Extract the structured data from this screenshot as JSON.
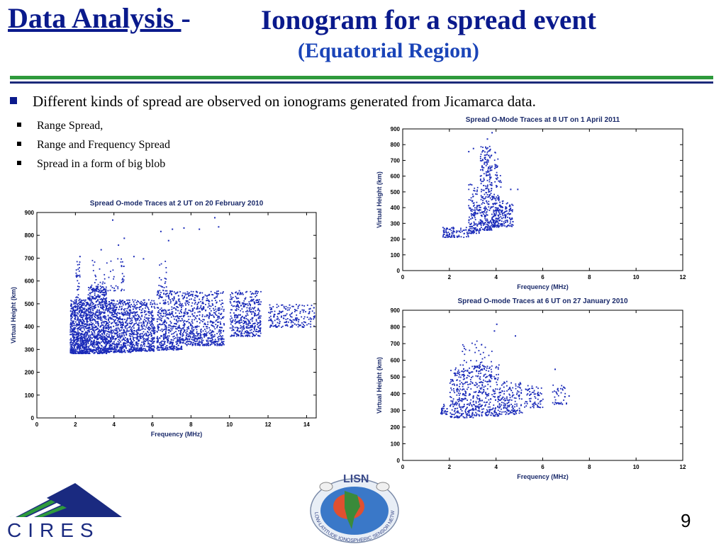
{
  "slide": {
    "title_part1": "Data Analysis ",
    "title_dash": "-",
    "title_part2": "Ionogram for a spread event",
    "subtitle": "(Equatorial Region)",
    "bullet_main": "Different kinds of spread are observed on ionograms generated from Jicamarca data.",
    "sub_bullets": [
      "Range Spread,",
      "Range and Frequency Spread",
      "Spread in a form of big blob"
    ],
    "page_number": "9",
    "logo_left": "CIRES",
    "logo_center": "LISN",
    "logo_center_ring": "LOW-LATITUDE IONOSPHERIC SENSOR NETWORK"
  },
  "colors": {
    "title": "#0a1a8c",
    "subtitle": "#1a44b8",
    "rule_green": "#2e9a3c",
    "rule_blue": "#1c2a7a",
    "points": "#1a2ab8"
  },
  "chart_data": [
    {
      "type": "scatter",
      "title": "Spread O-mode Traces at 2 UT on 20 February 2010",
      "xlabel": "Frequency (MHz)",
      "ylabel": "Virtual Height (km)",
      "xlim": [
        0,
        14.5
      ],
      "ylim": [
        0,
        900
      ],
      "xticks": [
        0,
        2,
        4,
        6,
        8,
        10,
        12,
        14
      ],
      "yticks": [
        0,
        100,
        200,
        300,
        400,
        500,
        600,
        700,
        800,
        900
      ],
      "series": [
        {
          "clusters": [
            {
              "x": [
                1.7,
                2.6
              ],
              "y": [
                285,
                520
              ],
              "n": 700
            },
            {
              "x": [
                2.6,
                3.6
              ],
              "y": [
                285,
                580
              ],
              "n": 700
            },
            {
              "x": [
                3.6,
                4.9
              ],
              "y": [
                290,
                520
              ],
              "n": 600
            },
            {
              "x": [
                4.9,
                6.1
              ],
              "y": [
                295,
                520
              ],
              "n": 450
            },
            {
              "x": [
                6.2,
                7.5
              ],
              "y": [
                300,
                560
              ],
              "n": 450
            },
            {
              "x": [
                7.5,
                9.7
              ],
              "y": [
                320,
                560
              ],
              "n": 600
            },
            {
              "x": [
                10.0,
                11.6
              ],
              "y": [
                360,
                560
              ],
              "n": 400
            },
            {
              "x": [
                12.0,
                14.4
              ],
              "y": [
                400,
                500
              ],
              "n": 200
            },
            {
              "x": [
                2.0,
                2.2
              ],
              "y": [
                520,
                690
              ],
              "n": 30
            },
            {
              "x": [
                2.8,
                4.2
              ],
              "y": [
                560,
                700
              ],
              "n": 40
            },
            {
              "x": [
                4.3,
                4.5
              ],
              "y": [
                560,
                700
              ],
              "n": 20
            },
            {
              "x": [
                6.3,
                6.7
              ],
              "y": [
                560,
                700
              ],
              "n": 20
            }
          ],
          "outliers": [
            {
              "x": 3.9,
              "y": 870
            },
            {
              "x": 4.5,
              "y": 790
            },
            {
              "x": 4.2,
              "y": 760
            },
            {
              "x": 3.3,
              "y": 740
            },
            {
              "x": 5.0,
              "y": 710
            },
            {
              "x": 5.5,
              "y": 700
            },
            {
              "x": 6.4,
              "y": 820
            },
            {
              "x": 7.0,
              "y": 830
            },
            {
              "x": 7.6,
              "y": 835
            },
            {
              "x": 8.4,
              "y": 830
            },
            {
              "x": 9.2,
              "y": 880
            },
            {
              "x": 9.4,
              "y": 840
            },
            {
              "x": 6.8,
              "y": 780
            },
            {
              "x": 2.2,
              "y": 710
            }
          ]
        }
      ]
    },
    {
      "type": "scatter",
      "title": "Spread O-Mode Traces at 8 UT on 1 April 2011",
      "xlabel": "Frequency (MHz)",
      "ylabel": "Virtual Height (km)",
      "xlim": [
        0,
        12
      ],
      "ylim": [
        0,
        900
      ],
      "xticks": [
        0,
        2,
        4,
        6,
        8,
        10,
        12
      ],
      "yticks": [
        0,
        100,
        200,
        300,
        400,
        500,
        600,
        700,
        800,
        900
      ],
      "series": [
        {
          "clusters": [
            {
              "x": [
                1.7,
                2.8
              ],
              "y": [
                215,
                280
              ],
              "n": 90
            },
            {
              "x": [
                2.8,
                3.3
              ],
              "y": [
                240,
                420
              ],
              "n": 120
            },
            {
              "x": [
                3.3,
                3.8
              ],
              "y": [
                260,
                800
              ],
              "n": 260
            },
            {
              "x": [
                3.8,
                4.1
              ],
              "y": [
                280,
                500
              ],
              "n": 120
            },
            {
              "x": [
                4.1,
                4.7
              ],
              "y": [
                280,
                450
              ],
              "n": 120
            },
            {
              "x": [
                2.8,
                3.2
              ],
              "y": [
                430,
                560
              ],
              "n": 25
            },
            {
              "x": [
                3.9,
                4.2
              ],
              "y": [
                520,
                760
              ],
              "n": 30
            }
          ],
          "outliers": [
            {
              "x": 3.8,
              "y": 880
            },
            {
              "x": 3.6,
              "y": 840
            },
            {
              "x": 2.8,
              "y": 760
            },
            {
              "x": 3.0,
              "y": 780
            },
            {
              "x": 4.9,
              "y": 520
            },
            {
              "x": 4.6,
              "y": 520
            }
          ]
        }
      ]
    },
    {
      "type": "scatter",
      "title": "Spread O-mode Traces at 6 UT on 27 January 2010",
      "xlabel": "Frequency (MHz)",
      "ylabel": "Virtual Height (km)",
      "xlim": [
        0,
        12
      ],
      "ylim": [
        0,
        900
      ],
      "xticks": [
        0,
        2,
        4,
        6,
        8,
        10,
        12
      ],
      "yticks": [
        0,
        100,
        200,
        300,
        400,
        500,
        600,
        700,
        800,
        900
      ],
      "series": [
        {
          "clusters": [
            {
              "x": [
                1.6,
                1.9
              ],
              "y": [
                280,
                340
              ],
              "n": 30
            },
            {
              "x": [
                2.0,
                3.0
              ],
              "y": [
                260,
                560
              ],
              "n": 260
            },
            {
              "x": [
                3.0,
                4.1
              ],
              "y": [
                270,
                580
              ],
              "n": 260
            },
            {
              "x": [
                4.1,
                5.1
              ],
              "y": [
                280,
                480
              ],
              "n": 160
            },
            {
              "x": [
                5.2,
                6.0
              ],
              "y": [
                320,
                460
              ],
              "n": 70
            },
            {
              "x": [
                6.4,
                7.0
              ],
              "y": [
                340,
                460
              ],
              "n": 40
            },
            {
              "x": [
                2.4,
                3.8
              ],
              "y": [
                560,
                720
              ],
              "n": 40
            }
          ],
          "outliers": [
            {
              "x": 4.0,
              "y": 820
            },
            {
              "x": 3.9,
              "y": 780
            },
            {
              "x": 4.8,
              "y": 750
            },
            {
              "x": 6.5,
              "y": 550
            },
            {
              "x": 7.1,
              "y": 390
            }
          ]
        }
      ]
    }
  ]
}
